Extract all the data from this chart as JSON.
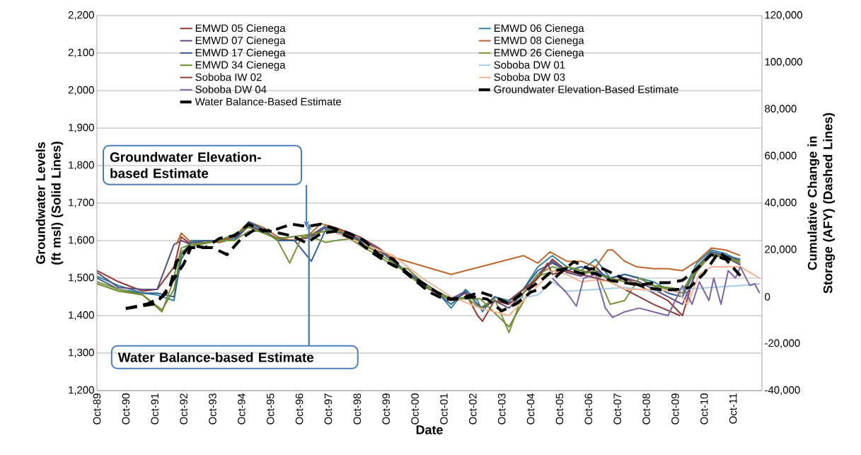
{
  "chart_data": {
    "type": "line",
    "xlabel": "Date",
    "ylabel": "Groundwater Levels (ft msl) (Solid Lines)",
    "y2label": "Cumulative Change in Storage (AFY) (Dashed Lines)",
    "xlim": [
      "1989-10",
      "2012-10"
    ],
    "xticks": [
      {
        "value": "1989-10",
        "label": "Oct-89"
      },
      {
        "value": "1990-10",
        "label": "Oct-90"
      },
      {
        "value": "1991-10",
        "label": "Oct-91"
      },
      {
        "value": "1992-10",
        "label": "Oct-92"
      },
      {
        "value": "1993-10",
        "label": "Oct-93"
      },
      {
        "value": "1994-10",
        "label": "Oct-94"
      },
      {
        "value": "1995-10",
        "label": "Oct-95"
      },
      {
        "value": "1996-10",
        "label": "Oct-96"
      },
      {
        "value": "1997-10",
        "label": "Oct-97"
      },
      {
        "value": "1998-10",
        "label": "Oct-98"
      },
      {
        "value": "1999-10",
        "label": "Oct-99"
      },
      {
        "value": "2000-10",
        "label": "Oct-00"
      },
      {
        "value": "2001-10",
        "label": "Oct-01"
      },
      {
        "value": "2002-10",
        "label": "Oct-02"
      },
      {
        "value": "2003-10",
        "label": "Oct-03"
      },
      {
        "value": "2004-10",
        "label": "Oct-04"
      },
      {
        "value": "2005-10",
        "label": "Oct-05"
      },
      {
        "value": "2006-10",
        "label": "Oct-06"
      },
      {
        "value": "2007-10",
        "label": "Oct-07"
      },
      {
        "value": "2008-10",
        "label": "Oct-08"
      },
      {
        "value": "2009-10",
        "label": "Oct-09"
      },
      {
        "value": "2010-10",
        "label": "Oct-10"
      },
      {
        "value": "2011-10",
        "label": "Oct-11"
      }
    ],
    "ylim": [
      1200,
      2200
    ],
    "yticks": [
      {
        "value": 1200,
        "label": "1,200"
      },
      {
        "value": 1300,
        "label": "1,300"
      },
      {
        "value": 1400,
        "label": "1,400"
      },
      {
        "value": 1500,
        "label": "1,500"
      },
      {
        "value": 1600,
        "label": "1,600"
      },
      {
        "value": 1700,
        "label": "1,700"
      },
      {
        "value": 1800,
        "label": "1,800"
      },
      {
        "value": 1900,
        "label": "1,900"
      },
      {
        "value": 2000,
        "label": "2,000"
      },
      {
        "value": 2100,
        "label": "2,100"
      },
      {
        "value": 2200,
        "label": "2,200"
      }
    ],
    "y2lim": [
      -40000,
      120000
    ],
    "y2ticks": [
      {
        "value": -40000,
        "label": "-40,000"
      },
      {
        "value": -20000,
        "label": "-20,000"
      },
      0,
      {
        "value": 20000,
        "label": "20,000"
      },
      {
        "value": 40000,
        "label": "40,000"
      },
      {
        "value": 60000,
        "label": "60,000"
      },
      {
        "value": 80000,
        "label": "80,000"
      },
      {
        "value": 100000,
        "label": "100,000"
      },
      {
        "value": 120000,
        "label": "120,000"
      }
    ],
    "grid": "y",
    "legend": "top",
    "line_style": "solid",
    "annotations": [
      "Groundwater Elevation-based Estimate",
      {
        "text": "Water Balance-based Estimate",
        "x": "1997-02",
        "y": 1628
      }
    ],
    "series": [
      {
        "name": "EMWD 05 Cienega",
        "color": "#953735",
        "x": [
          "1989-10",
          "1990-07",
          "1991-05",
          "1991-11",
          "1992-06",
          "1992-09",
          "1993-01",
          "1993-07",
          "1994-01",
          "1994-07",
          "1995-01",
          "1995-07",
          "1996-01",
          "1996-08",
          "1997-03",
          "1997-09",
          "1998-03",
          "1998-11",
          "1999-07",
          "2000-01",
          "2000-07",
          "2001-01",
          "2001-07",
          "2002-01",
          "2002-07",
          "2002-12",
          "2003-02",
          "2003-07",
          "2004-01",
          "2004-07",
          "2005-01",
          "2005-07",
          "2006-01",
          "2006-07",
          "2007-01",
          "2007-07",
          "2008-01",
          "2008-07",
          "2009-01",
          "2009-07",
          "2010-01",
          "2010-07",
          "2011-01",
          "2011-07",
          "2012-01"
        ],
        "values": [
          1520,
          1490,
          1465,
          1470,
          1530,
          1610,
          1590,
          1595,
          1600,
          1610,
          1640,
          1625,
          1605,
          1600,
          1615,
          1640,
          1630,
          1610,
          1580,
          1550,
          1510,
          1480,
          1460,
          1440,
          1460,
          1400,
          1385,
          1440,
          1430,
          1460,
          1500,
          1550,
          1520,
          1510,
          1530,
          1490,
          1500,
          1480,
          1460,
          1440,
          1400,
          1530,
          1570,
          1560,
          1540
        ]
      },
      {
        "name": "EMWD 06 Cienega",
        "color": "#31859c",
        "x": [
          "1989-10",
          "1990-07",
          "1991-05",
          "1991-11",
          "1992-06",
          "1992-09",
          "1993-01",
          "1993-07",
          "1994-01",
          "1994-07",
          "1995-01",
          "1995-07",
          "1996-01",
          "1996-08",
          "1997-03",
          "1997-09",
          "1998-03",
          "1998-11",
          "1999-07",
          "2000-01",
          "2000-07",
          "2001-01",
          "2001-07",
          "2002-01",
          "2002-07",
          "2002-12",
          "2003-02",
          "2003-07",
          "2004-01",
          "2004-07",
          "2005-01",
          "2005-07",
          "2006-01",
          "2006-07",
          "2007-01",
          "2007-07",
          "2008-01",
          "2008-07",
          "2009-01",
          "2009-07",
          "2010-01",
          "2010-07",
          "2011-01",
          "2011-07",
          "2012-01"
        ],
        "values": [
          1505,
          1480,
          1460,
          1455,
          1440,
          1560,
          1600,
          1600,
          1595,
          1605,
          1645,
          1630,
          1600,
          1600,
          1610,
          1640,
          1625,
          1600,
          1575,
          1545,
          1515,
          1490,
          1465,
          1420,
          1470,
          1440,
          1410,
          1450,
          1440,
          1470,
          1530,
          1560,
          1530,
          1520,
          1550,
          1500,
          1510,
          1500,
          1490,
          1470,
          1460,
          1540,
          1575,
          1565,
          1545
        ]
      },
      {
        "name": "EMWD 07 Cienega",
        "color": "#604a7b",
        "x": [
          "1989-10",
          "1990-07",
          "1991-05",
          "1991-11",
          "1992-06",
          "1992-09",
          "1993-01",
          "1993-07",
          "1994-01",
          "1994-07",
          "1995-01",
          "1995-07",
          "1996-01",
          "1996-08",
          "1997-03",
          "1997-09",
          "1998-03",
          "1998-11",
          "1999-07",
          "2000-01",
          "2000-07",
          "2001-01",
          "2001-07",
          "2002-01",
          "2002-07",
          "2002-12",
          "2003-02",
          "2003-07",
          "2004-01",
          "2004-07",
          "2005-01",
          "2005-07",
          "2006-01",
          "2006-07",
          "2007-01",
          "2007-07",
          "2008-01",
          "2008-07",
          "2009-01",
          "2009-07",
          "2010-01",
          "2010-07",
          "2011-01",
          "2011-07",
          "2012-01"
        ],
        "values": [
          1515,
          1475,
          1470,
          1470,
          1590,
          1600,
          1590,
          1600,
          1600,
          1600,
          1640,
          1625,
          1605,
          1600,
          1610,
          1635,
          1625,
          1605,
          1575,
          1545,
          1515,
          1490,
          1465,
          1445,
          1465,
          1430,
          1420,
          1440,
          1420,
          1460,
          1510,
          1545,
          1515,
          1505,
          1530,
          1490,
          1500,
          1490,
          1470,
          1450,
          1430,
          1520,
          1565,
          1555,
          1535
        ]
      },
      {
        "name": "EMWD 08 Cienega",
        "color": "#c0652b",
        "x": [
          "1992-07",
          "1992-09",
          "1993-01",
          "1993-07",
          "1994-01",
          "1994-07",
          "1995-01",
          "1995-07",
          "1996-01",
          "1996-07",
          "1997-01",
          "1997-07",
          "1998-01",
          "1998-07",
          "1999-01",
          "1999-07",
          "2000-01",
          "2002-01",
          "2004-07",
          "2005-01",
          "2005-06",
          "2006-01",
          "2006-07",
          "2007-01",
          "2007-06",
          "2007-08",
          "2008-01",
          "2008-06",
          "2009-01",
          "2009-07",
          "2010-01",
          "2010-07",
          "2011-01",
          "2011-07",
          "2012-01"
        ],
        "values": [
          1590,
          1620,
          1595,
          1600,
          1595,
          1610,
          1650,
          1635,
          1610,
          1600,
          1610,
          1645,
          1635,
          1610,
          1585,
          1570,
          1555,
          1510,
          1560,
          1540,
          1570,
          1545,
          1545,
          1530,
          1575,
          1575,
          1545,
          1530,
          1525,
          1525,
          1520,
          1545,
          1580,
          1575,
          1560
        ]
      },
      {
        "name": "EMWD 17 Cienega",
        "color": "#376092",
        "x": [
          "1989-10",
          "1990-07",
          "1991-05",
          "1991-11",
          "1992-06",
          "1992-09",
          "1993-01",
          "1993-07",
          "1994-01",
          "1994-07",
          "1995-01",
          "1995-07",
          "1996-01",
          "1996-08",
          "1997-03",
          "1997-09",
          "1998-03",
          "1998-11",
          "1999-07",
          "2000-01",
          "2000-07",
          "2001-01",
          "2001-07",
          "2002-01",
          "2002-07",
          "2002-12",
          "2003-02",
          "2003-07",
          "2004-01",
          "2004-07",
          "2005-01",
          "2005-07",
          "2006-01",
          "2006-07",
          "2007-01",
          "2007-07",
          "2008-01",
          "2008-07",
          "2009-01",
          "2009-07",
          "2010-01",
          "2010-07",
          "2011-01",
          "2011-07",
          "2012-01"
        ],
        "values": [
          1500,
          1470,
          1460,
          1460,
          1450,
          1550,
          1595,
          1600,
          1600,
          1600,
          1650,
          1630,
          1600,
          1600,
          1545,
          1630,
          1620,
          1600,
          1575,
          1545,
          1515,
          1485,
          1460,
          1430,
          1465,
          1430,
          1420,
          1450,
          1435,
          1470,
          1520,
          1540,
          1520,
          1530,
          1520,
          1500,
          1510,
          1500,
          1480,
          1460,
          1450,
          1530,
          1570,
          1560,
          1550
        ]
      },
      {
        "name": "EMWD 26 Cienega",
        "color": "#77933c",
        "x": [
          "1989-10",
          "1990-07",
          "1991-05",
          "1992-01",
          "1992-05",
          "1992-09",
          "1993-01",
          "1993-07",
          "1994-01",
          "1994-07",
          "1995-01",
          "1995-07",
          "1996-01",
          "1996-06",
          "1996-11",
          "1997-03",
          "1997-09",
          "1998-01",
          "1998-07",
          "1999-01",
          "1999-07",
          "2000-01",
          "2000-07",
          "2001-01",
          "2001-07",
          "2002-01",
          "2002-07",
          "2003-01",
          "2003-07",
          "2004-01",
          "2004-07",
          "2005-01",
          "2005-07",
          "2006-01",
          "2006-07",
          "2007-01",
          "2007-07",
          "2008-01",
          "2008-07",
          "2009-01",
          "2009-07",
          "2010-01",
          "2010-07",
          "2011-01",
          "2011-07",
          "2012-01"
        ],
        "values": [
          1490,
          1470,
          1455,
          1410,
          1480,
          1580,
          1590,
          1595,
          1600,
          1600,
          1625,
          1625,
          1600,
          1540,
          1610,
          1610,
          1595,
          1600,
          1605,
          1580,
          1560,
          1530,
          1525,
          1490,
          1460,
          1440,
          1450,
          1420,
          1445,
          1355,
          1460,
          1510,
          1530,
          1520,
          1510,
          1520,
          1430,
          1440,
          1500,
          1480,
          1470,
          1460,
          1530,
          1560,
          1555,
          1540
        ]
      },
      {
        "name": "EMWD 34 Cienega",
        "color": "#6e8b2c",
        "x": [
          "1989-10",
          "1990-07",
          "1991-05",
          "1992-01",
          "1992-06",
          "1992-09",
          "1993-01",
          "1994-01",
          "1995-01",
          "1996-01",
          "1997-01",
          "1998-01",
          "1999-01",
          "2000-01",
          "2001-01",
          "2002-01",
          "2003-01",
          "2004-01",
          "2005-01",
          "2006-01",
          "2007-01",
          "2008-01",
          "2009-01",
          "2010-01",
          "2011-01",
          "2012-01"
        ],
        "values": [
          1485,
          1465,
          1455,
          1415,
          1470,
          1570,
          1585,
          1600,
          1635,
          1605,
          1615,
          1630,
          1590,
          1540,
          1480,
          1445,
          1445,
          1370,
          1505,
          1530,
          1510,
          1490,
          1480,
          1470,
          1565,
          1545
        ]
      },
      {
        "name": "Soboba DW 01",
        "color": "#a5cbdf",
        "x": [
          "2004-01",
          "2005-01",
          "2005-07",
          "2006-01",
          "2007-01",
          "2008-01",
          "2009-01",
          "2010-01",
          "2011-01",
          "2012-01",
          "2012-09"
        ],
        "values": [
          1440,
          1455,
          1490,
          1465,
          1470,
          1475,
          1465,
          1470,
          1475,
          1480,
          1485
        ]
      },
      {
        "name": "Soboba IW 02",
        "color": "#8b3a3a",
        "x": [
          "2004-01",
          "2004-07",
          "2005-01",
          "2005-05",
          "2005-07",
          "2006-01",
          "2006-07",
          "2007-01",
          "2007-07",
          "2008-01",
          "2008-07",
          "2009-01",
          "2009-12"
        ],
        "values": [
          1440,
          1470,
          1500,
          1540,
          1510,
          1520,
          1510,
          1500,
          1490,
          1470,
          1450,
          1430,
          1400
        ]
      },
      {
        "name": "Soboba DW 03",
        "color": "#f4b393",
        "x": [
          "1998-01",
          "1999-01",
          "2000-01",
          "2001-01",
          "2002-01",
          "2003-01",
          "2004-01",
          "2004-07",
          "2005-01",
          "2005-07",
          "2006-01",
          "2006-07",
          "2007-01",
          "2007-07",
          "2008-01",
          "2009-01",
          "2009-11",
          "2010-03",
          "2010-08",
          "2011-01",
          "2012-01",
          "2012-09"
        ],
        "values": [
          1620,
          1590,
          1560,
          1500,
          1450,
          1420,
          1400,
          1440,
          1480,
          1520,
          1510,
          1490,
          1495,
          1490,
          1470,
          1470,
          1465,
          1430,
          1510,
          1530,
          1530,
          1500
        ]
      },
      {
        "name": "Soboba DW 04",
        "color": "#8064a2",
        "x": [
          "2005-07",
          "2006-01",
          "2006-05",
          "2006-08",
          "2007-01",
          "2007-05",
          "2007-08",
          "2008-01",
          "2008-07",
          "2009-01",
          "2009-07",
          "2010-01",
          "2010-05",
          "2010-08",
          "2010-12",
          "2011-02",
          "2011-05",
          "2011-08",
          "2011-11",
          "2012-01",
          "2012-05",
          "2012-07",
          "2012-09"
        ],
        "values": [
          1500,
          1460,
          1425,
          1500,
          1510,
          1420,
          1395,
          1410,
          1420,
          1410,
          1400,
          1480,
          1430,
          1490,
          1440,
          1500,
          1430,
          1520,
          1500,
          1530,
          1480,
          1485,
          1460
        ]
      },
      {
        "name": "Groundwater Elevation-Based Estimate",
        "color": "#000000",
        "axis": "y2",
        "line_style": "dashed",
        "x": [
          "1990-10",
          "1991-04",
          "1991-10",
          "1992-04",
          "1992-07",
          "1993-01",
          "1993-07",
          "1994-01",
          "1994-07",
          "1995-01",
          "1995-07",
          "1996-01",
          "1996-07",
          "1997-01",
          "1997-07",
          "1998-01",
          "1998-07",
          "1999-01",
          "1999-07",
          "2000-01",
          "2000-07",
          "2001-01",
          "2001-07",
          "2002-01",
          "2002-07",
          "2003-01",
          "2003-07",
          "2004-01",
          "2004-07",
          "2005-01",
          "2005-07",
          "2006-01",
          "2006-07",
          "2007-01",
          "2007-07",
          "2008-01",
          "2008-07",
          "2009-01",
          "2009-07",
          "2010-01",
          "2010-07",
          "2011-01",
          "2011-07",
          "2012-01"
        ],
        "values": [
          -5000,
          -4000,
          -3000,
          3000,
          15000,
          22000,
          21000,
          25000,
          26000,
          31000,
          28000,
          29000,
          31000,
          30000,
          31000,
          29000,
          27000,
          24000,
          18000,
          16000,
          10000,
          6000,
          2000,
          -1000,
          0,
          2000,
          0,
          -3000,
          2000,
          6000,
          11000,
          12000,
          10000,
          10000,
          7000,
          6000,
          5000,
          6000,
          6000,
          7000,
          12000,
          18000,
          16000,
          9000
        ]
      },
      {
        "name": "Water Balance-Based Estimate",
        "color": "#000000",
        "axis": "y2",
        "line_style": "dashed",
        "x": [
          "1990-10",
          "1991-07",
          "1992-01",
          "1992-10",
          "1993-01",
          "1993-10",
          "1994-04",
          "1994-10",
          "1995-04",
          "1995-10",
          "1996-07",
          "1997-01",
          "1997-07",
          "1998-01",
          "1998-10",
          "1999-04",
          "1999-10",
          "2000-04",
          "2000-10",
          "2001-04",
          "2001-10",
          "2002-04",
          "2002-10",
          "2003-04",
          "2003-10",
          "2004-04",
          "2004-10",
          "2005-04",
          "2005-10",
          "2006-04",
          "2006-10",
          "2007-04",
          "2007-10",
          "2008-04",
          "2008-10",
          "2009-04",
          "2009-10",
          "2010-04",
          "2010-10",
          "2011-04",
          "2011-10"
        ],
        "values": [
          -5000,
          -3000,
          0,
          14000,
          21000,
          21000,
          18000,
          25000,
          29000,
          28000,
          26000,
          23000,
          27000,
          28000,
          24000,
          19000,
          15000,
          12000,
          7000,
          2000,
          -1000,
          -1000,
          0,
          -1000,
          -6000,
          -3000,
          2000,
          4000,
          10000,
          15000,
          12000,
          12000,
          9000,
          6000,
          4000,
          3000,
          3000,
          4000,
          10000,
          19000,
          15000
        ]
      }
    ]
  }
}
